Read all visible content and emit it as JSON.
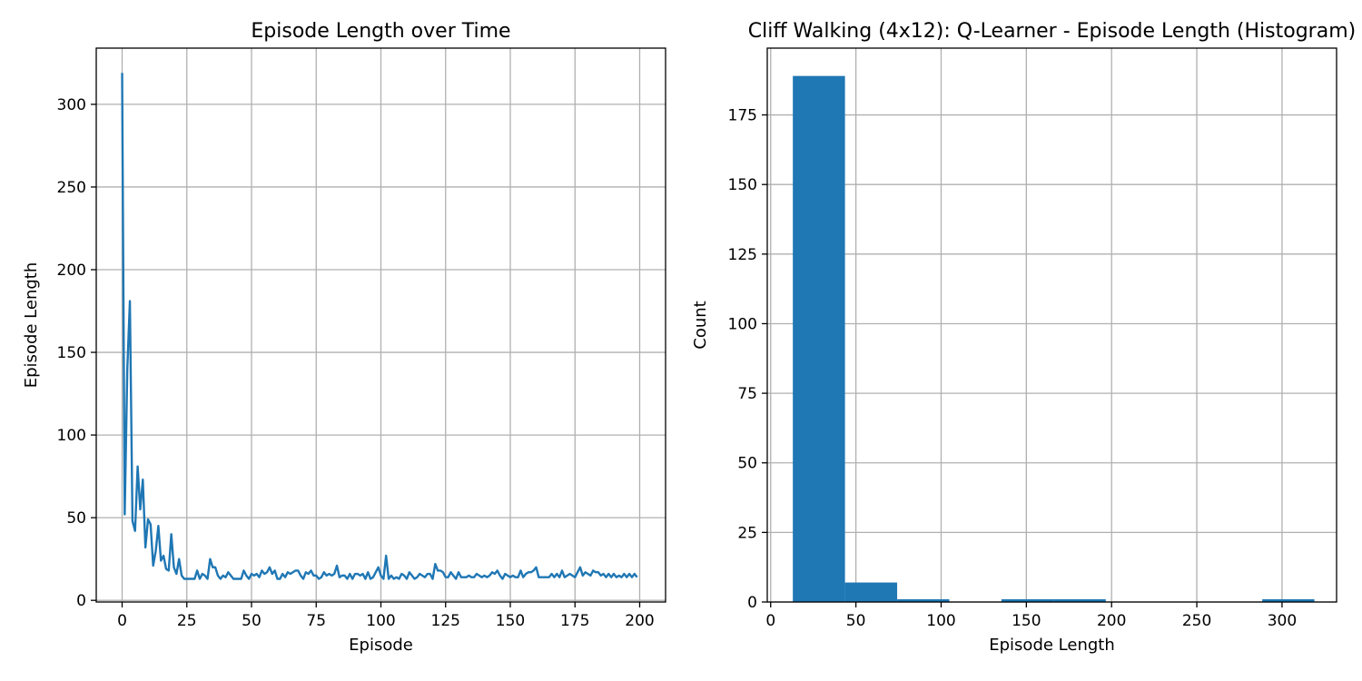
{
  "chart_data": [
    {
      "type": "line",
      "title": "Episode Length over Time",
      "xlabel": "Episode",
      "ylabel": "Episode Length",
      "xlim": [
        -10,
        210
      ],
      "ylim": [
        -1,
        334
      ],
      "xticks": [
        0,
        25,
        50,
        75,
        100,
        125,
        150,
        175,
        200
      ],
      "yticks": [
        0,
        50,
        100,
        150,
        200,
        250,
        300
      ],
      "grid": true,
      "color": "#1f77b4",
      "series": [
        {
          "x": [
            0,
            1,
            2,
            3,
            4,
            5,
            6,
            7,
            8,
            9,
            10,
            11,
            12,
            13,
            14,
            15,
            16,
            17,
            18,
            19,
            20,
            21,
            22,
            23,
            24,
            25,
            26,
            27,
            28,
            29,
            30,
            31,
            32,
            33,
            34,
            35,
            36,
            37,
            38,
            39,
            40,
            41,
            42,
            43,
            44,
            45,
            46,
            47,
            48,
            49,
            50,
            51,
            52,
            53,
            54,
            55,
            56,
            57,
            58,
            59,
            60,
            61,
            62,
            63,
            64,
            65,
            66,
            67,
            68,
            69,
            70,
            71,
            72,
            73,
            74,
            75,
            76,
            77,
            78,
            79,
            80,
            81,
            82,
            83,
            84,
            85,
            86,
            87,
            88,
            89,
            90,
            91,
            92,
            93,
            94,
            95,
            96,
            97,
            98,
            99,
            100,
            101,
            102,
            103,
            104,
            105,
            106,
            107,
            108,
            109,
            110,
            111,
            112,
            113,
            114,
            115,
            116,
            117,
            118,
            119,
            120,
            121,
            122,
            123,
            124,
            125,
            126,
            127,
            128,
            129,
            130,
            131,
            132,
            133,
            134,
            135,
            136,
            137,
            138,
            139,
            140,
            141,
            142,
            143,
            144,
            145,
            146,
            147,
            148,
            149,
            150,
            151,
            152,
            153,
            154,
            155,
            156,
            157,
            158,
            159,
            160,
            161,
            162,
            163,
            164,
            165,
            166,
            167,
            168,
            169,
            170,
            171,
            172,
            173,
            174,
            175,
            176,
            177,
            178,
            179,
            180,
            181,
            182,
            183,
            184,
            185,
            186,
            187,
            188,
            189,
            190,
            191,
            192,
            193,
            194,
            195,
            196,
            197,
            198,
            199
          ],
          "y": [
            319,
            52,
            140,
            181,
            48,
            42,
            81,
            55,
            73,
            32,
            49,
            46,
            21,
            30,
            45,
            24,
            27,
            19,
            18,
            40,
            20,
            16,
            25,
            15,
            13,
            13,
            13,
            13,
            13,
            18,
            13,
            16,
            15,
            13,
            25,
            20,
            20,
            15,
            13,
            15,
            14,
            17,
            15,
            13,
            13,
            13,
            13,
            18,
            15,
            13,
            16,
            15,
            16,
            14,
            18,
            16,
            17,
            20,
            16,
            18,
            13,
            13,
            16,
            14,
            17,
            16,
            17,
            18,
            18,
            15,
            13,
            17,
            16,
            18,
            15,
            15,
            13,
            14,
            17,
            15,
            16,
            15,
            16,
            21,
            14,
            15,
            15,
            13,
            16,
            13,
            16,
            16,
            15,
            16,
            13,
            17,
            13,
            14,
            17,
            20,
            15,
            13,
            27,
            13,
            15,
            13,
            14,
            13,
            16,
            15,
            13,
            17,
            15,
            13,
            14,
            16,
            15,
            14,
            16,
            16,
            13,
            22,
            18,
            18,
            17,
            14,
            14,
            17,
            15,
            13,
            17,
            14,
            14,
            14,
            15,
            14,
            14,
            16,
            15,
            14,
            15,
            14,
            15,
            17,
            16,
            18,
            15,
            13,
            16,
            15,
            14,
            15,
            14,
            14,
            18,
            14,
            16,
            17,
            17,
            18,
            20,
            14,
            14,
            14,
            14,
            14,
            16,
            14,
            16,
            14,
            18,
            14,
            15,
            16,
            15,
            14,
            17,
            20,
            15,
            17,
            16,
            15,
            18,
            17,
            17,
            15,
            16,
            14,
            16,
            14,
            16,
            14,
            15,
            14,
            16,
            14,
            16,
            14,
            16,
            14
          ]
        }
      ]
    },
    {
      "type": "bar",
      "title": "Cliff Walking (4x12): Q-Learner - Episode Length (Histogram)",
      "xlabel": "Episode Length",
      "ylabel": "Count",
      "xlim": [
        -2,
        332
      ],
      "ylim": [
        0,
        199
      ],
      "xticks": [
        0,
        50,
        100,
        150,
        200,
        250,
        300
      ],
      "yticks": [
        0,
        25,
        50,
        75,
        100,
        125,
        150,
        175
      ],
      "grid": true,
      "color": "#1f77b4",
      "bins": [
        {
          "x0": 13,
          "x1": 43.6,
          "count": 189
        },
        {
          "x0": 43.6,
          "x1": 74.2,
          "count": 7
        },
        {
          "x0": 74.2,
          "x1": 104.8,
          "count": 1
        },
        {
          "x0": 104.8,
          "x1": 135.4,
          "count": 0
        },
        {
          "x0": 135.4,
          "x1": 166.0,
          "count": 1
        },
        {
          "x0": 166.0,
          "x1": 196.6,
          "count": 1
        },
        {
          "x0": 196.6,
          "x1": 227.2,
          "count": 0
        },
        {
          "x0": 227.2,
          "x1": 257.8,
          "count": 0
        },
        {
          "x0": 257.8,
          "x1": 288.4,
          "count": 0
        },
        {
          "x0": 288.4,
          "x1": 319,
          "count": 1
        }
      ]
    }
  ]
}
